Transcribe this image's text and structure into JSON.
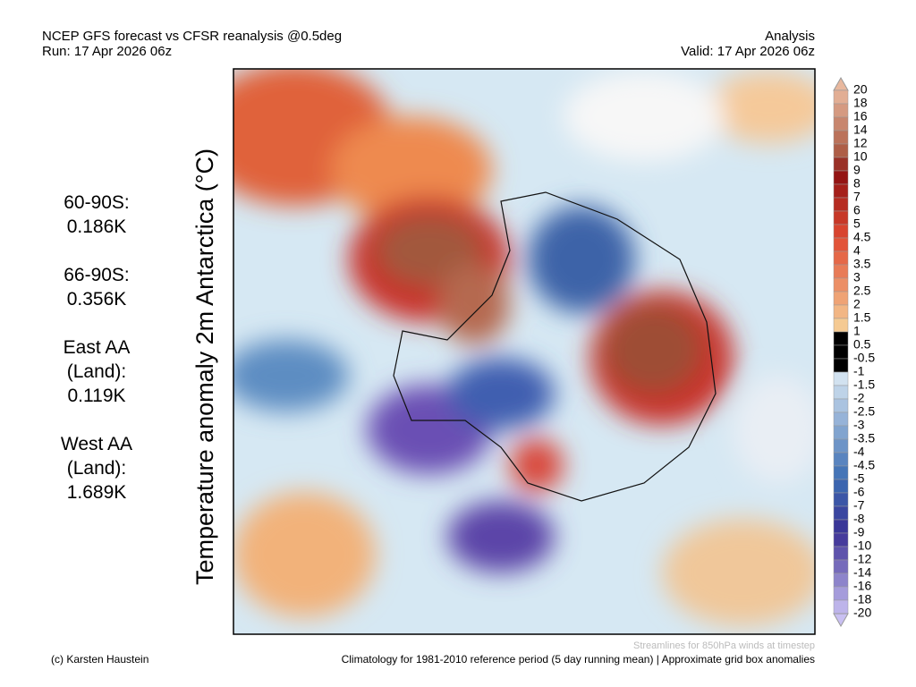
{
  "header": {
    "title": "NCEP GFS forecast vs CFSR reanalysis @0.5deg",
    "run": "Run: 17 Apr 2026 06z",
    "mode": "Analysis",
    "valid": "Valid: 17 Apr 2026 06z"
  },
  "stats": [
    [
      "60-90S:",
      "0.186K"
    ],
    [
      "66-90S:",
      "0.356K"
    ],
    [
      "East AA",
      "(Land):",
      "0.119K"
    ],
    [
      "West AA",
      "(Land):",
      "1.689K"
    ]
  ],
  "axis_label": "Temperature anomaly 2m Antarctica (°C)",
  "colorbar": {
    "labels": [
      "20",
      "18",
      "16",
      "14",
      "12",
      "10",
      "9",
      "8",
      "7",
      "6",
      "5",
      "4.5",
      "4",
      "3.5",
      "3",
      "2.5",
      "2",
      "1.5",
      "1",
      "0.5",
      "-0.5",
      "-1",
      "-1.5",
      "-2",
      "-2.5",
      "-3",
      "-3.5",
      "-4",
      "-4.5",
      "-5",
      "-6",
      "-7",
      "-8",
      "-9",
      "-10",
      "-12",
      "-14",
      "-16",
      "-18",
      "-20"
    ]
  },
  "footer": {
    "credit": "(c) Karsten Haustein",
    "streamlines": "Streamlines for 850hPa winds at timestep",
    "climatology": "Climatology for 1981-2010 reference period (5 day running mean) | Approximate grid box anomalies"
  }
}
